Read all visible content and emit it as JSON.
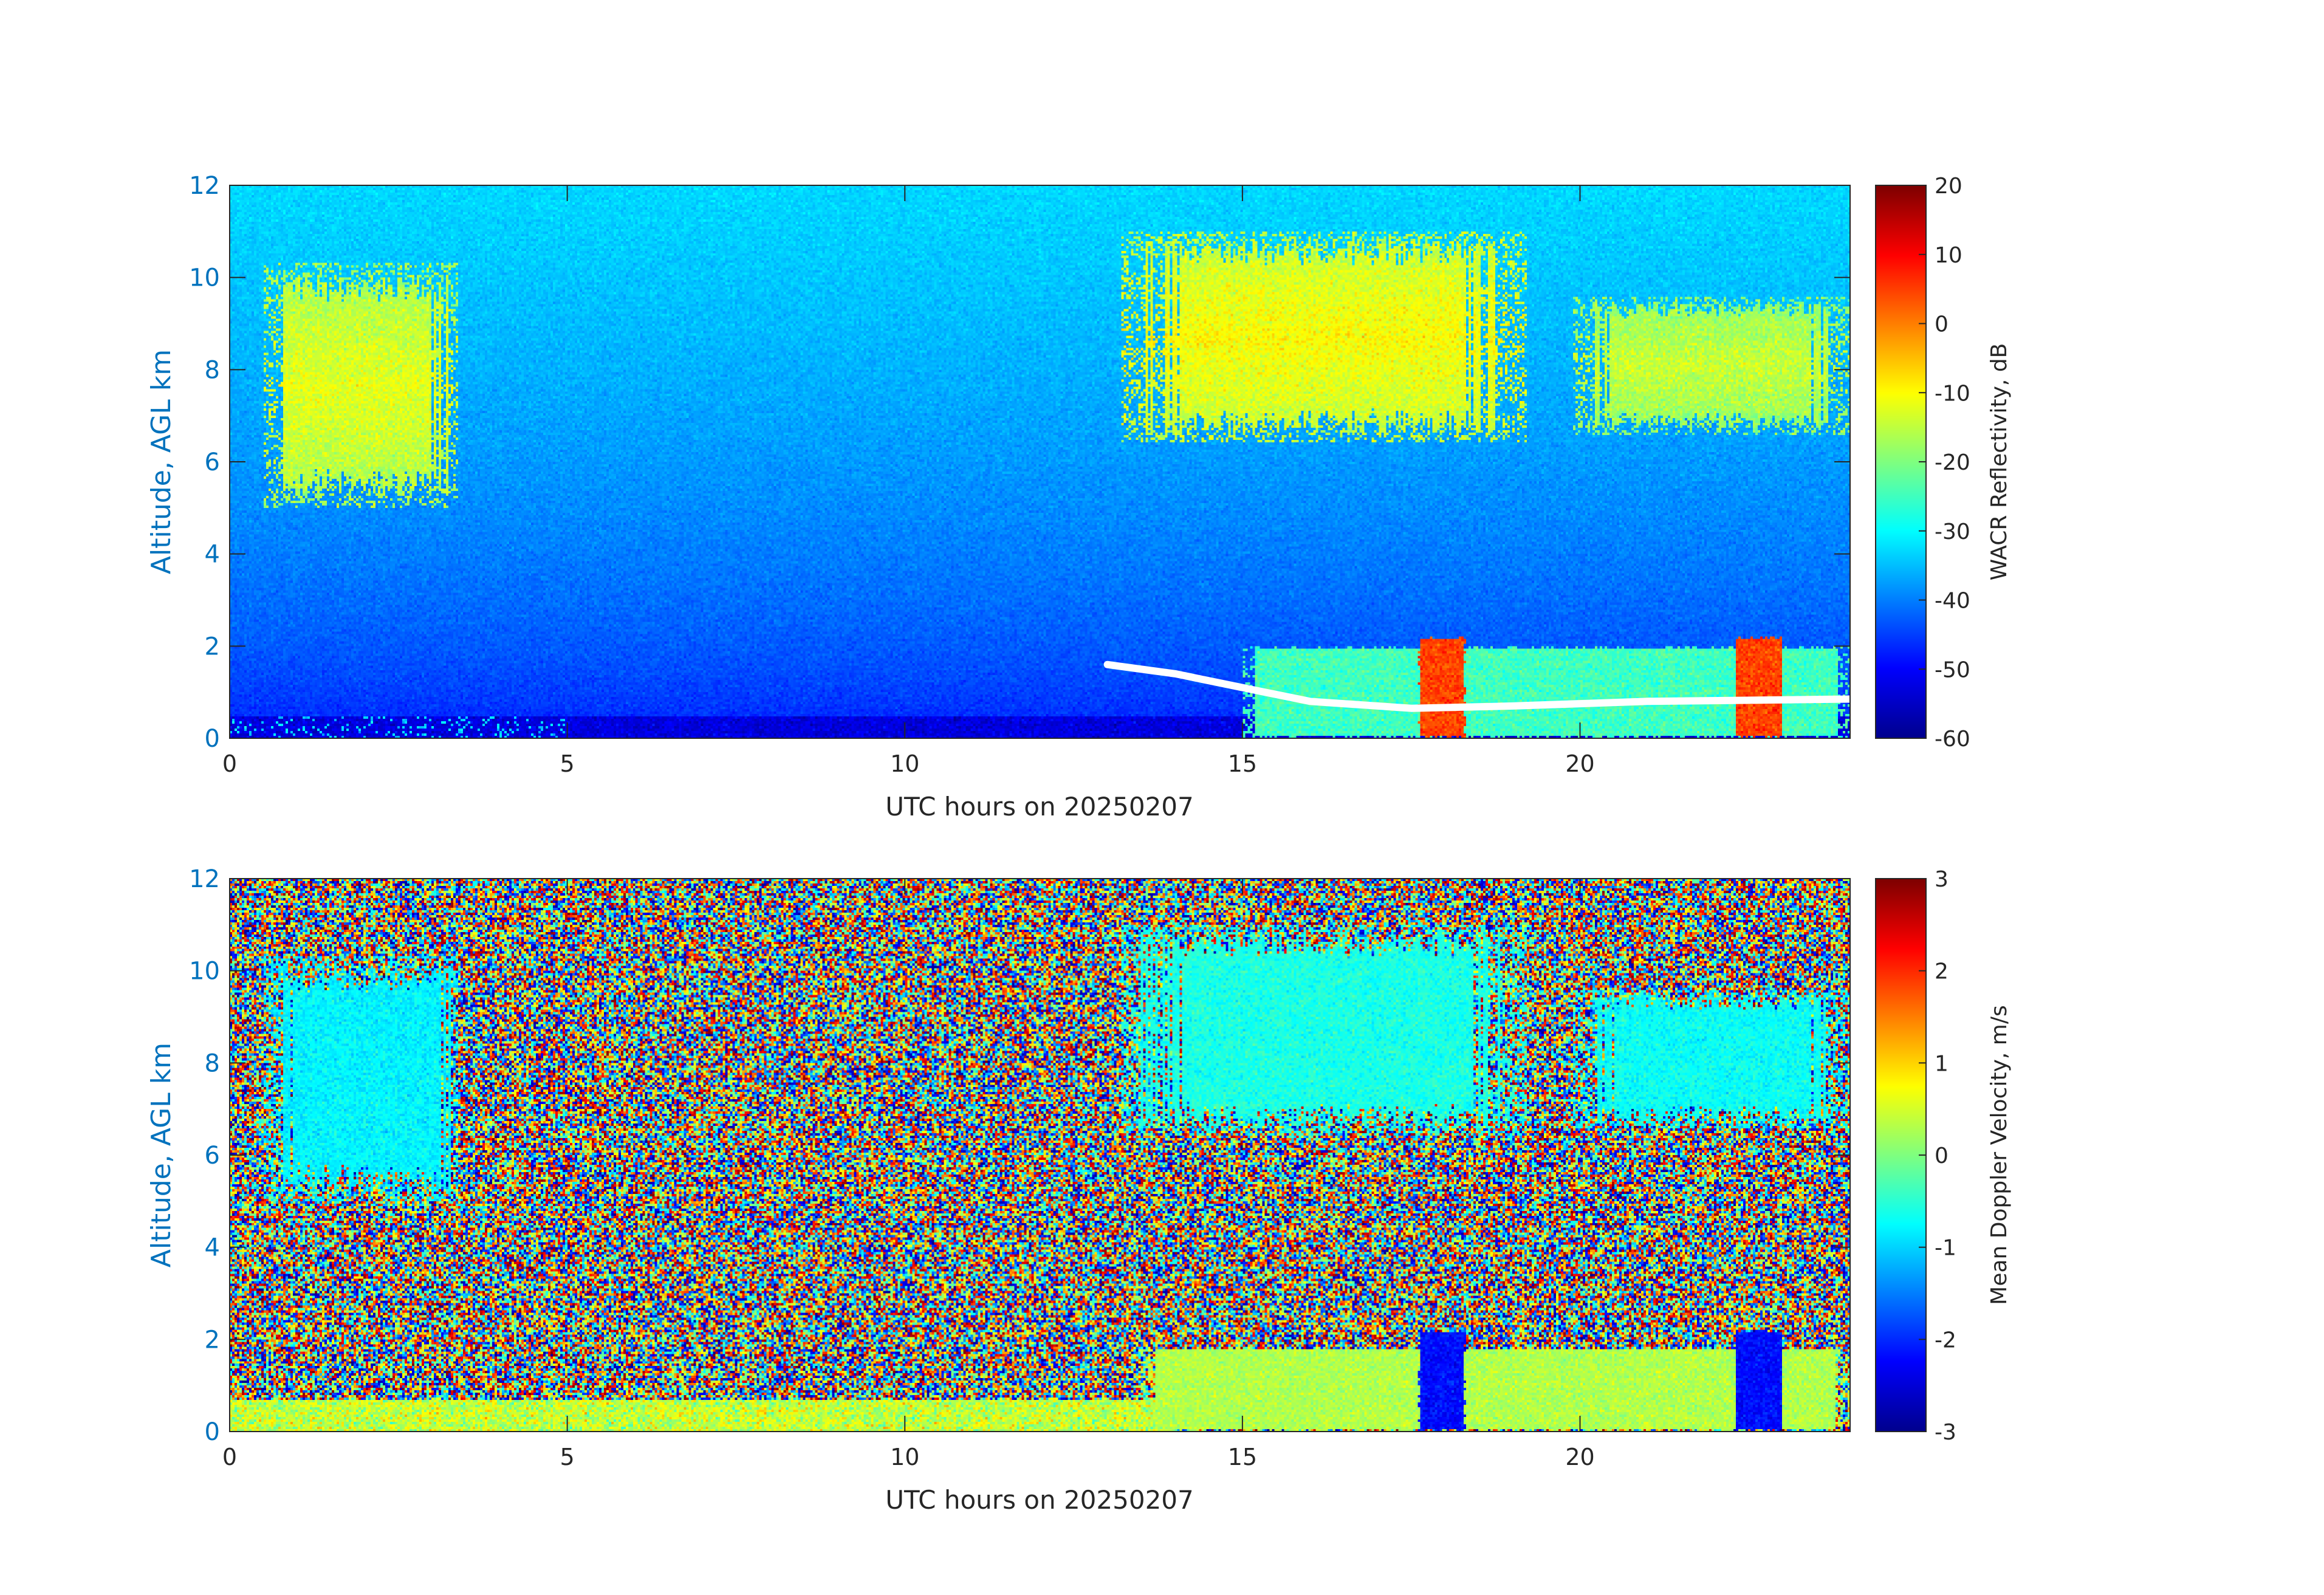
{
  "colors": {
    "axis_label": "#0072BD",
    "tick_text": "#262626",
    "jet_stops": [
      "#00008F",
      "#0000FF",
      "#00FFFF",
      "#FFFF00",
      "#FF0000",
      "#800000"
    ]
  },
  "chart_data": [
    {
      "type": "heatmap",
      "title": "",
      "xlabel": "UTC hours on 20250207",
      "ylabel": "Altitude, AGL km",
      "xlim": [
        0,
        24
      ],
      "ylim": [
        0,
        12
      ],
      "xticks": [
        "0",
        "5",
        "10",
        "15",
        "20"
      ],
      "yticks": [
        "0",
        "2",
        "4",
        "6",
        "8",
        "10",
        "12"
      ],
      "colorbar": {
        "label": "WACR Reflectivity, dB",
        "range": [
          -60,
          20
        ],
        "ticks": [
          "20",
          "10",
          "0",
          "-10",
          "-20",
          "-30",
          "-40",
          "-50",
          "-60"
        ],
        "colormap": "jet"
      },
      "background": "noise increasing from about -50 dB near the surface to about -33 dB at 12 km",
      "features": [
        {
          "kind": "cloud",
          "x": [
            0.5,
            3.4
          ],
          "y": [
            5.0,
            10.3
          ],
          "value_db": -12
        },
        {
          "kind": "cloud",
          "x": [
            13.2,
            19.2
          ],
          "y": [
            6.4,
            11.0
          ],
          "value_db": -10
        },
        {
          "kind": "cloud",
          "x": [
            19.9,
            24.0
          ],
          "y": [
            6.6,
            9.6
          ],
          "value_db": -14
        },
        {
          "kind": "low_echo",
          "x": [
            15.0,
            24.0
          ],
          "y": [
            0.0,
            2.0
          ],
          "value_db": -25
        },
        {
          "kind": "precip_column",
          "x": [
            17.6,
            18.3
          ],
          "y": [
            0.0,
            2.2
          ],
          "value_db": 5
        },
        {
          "kind": "precip_column",
          "x": [
            22.3,
            23.0
          ],
          "y": [
            0.0,
            2.2
          ],
          "value_db": 5
        }
      ],
      "white_line": {
        "x": [
          13.0,
          14.0,
          15.0,
          16.0,
          17.5,
          19.0,
          21.0,
          24.0
        ],
        "y": [
          1.6,
          1.4,
          1.1,
          0.8,
          0.65,
          0.7,
          0.8,
          0.85
        ]
      }
    },
    {
      "type": "heatmap",
      "title": "",
      "xlabel": "UTC hours on 20250207",
      "ylabel": "Altitude, AGL km",
      "xlim": [
        0,
        24
      ],
      "ylim": [
        0,
        12
      ],
      "xticks": [
        "0",
        "5",
        "10",
        "15",
        "20"
      ],
      "yticks": [
        "0",
        "2",
        "4",
        "6",
        "8",
        "10",
        "12"
      ],
      "colorbar": {
        "label": "Mean Doppler Velocity, m/s",
        "range": [
          -3,
          3
        ],
        "ticks": [
          "3",
          "2",
          "1",
          "0",
          "-1",
          "-2",
          "-3"
        ],
        "colormap": "jet"
      },
      "background": "random noise spanning -3 to 3 m/s",
      "features": [
        {
          "kind": "cloud",
          "x": [
            0.5,
            3.4
          ],
          "y": [
            5.0,
            10.3
          ],
          "value_ms": -0.8
        },
        {
          "kind": "cloud",
          "x": [
            13.2,
            19.2
          ],
          "y": [
            6.4,
            11.0
          ],
          "value_ms": -0.6
        },
        {
          "kind": "cloud",
          "x": [
            19.9,
            24.0
          ],
          "y": [
            6.6,
            9.6
          ],
          "value_ms": -0.7
        },
        {
          "kind": "low_echo",
          "x": [
            13.5,
            24.0
          ],
          "y": [
            0.0,
            1.8
          ],
          "value_ms": 0.3
        },
        {
          "kind": "precip_column",
          "x": [
            17.6,
            18.3
          ],
          "y": [
            0.0,
            2.2
          ],
          "value_ms": -2.2
        },
        {
          "kind": "precip_column",
          "x": [
            22.3,
            23.0
          ],
          "y": [
            0.0,
            2.2
          ],
          "value_ms": -2.2
        }
      ]
    }
  ]
}
